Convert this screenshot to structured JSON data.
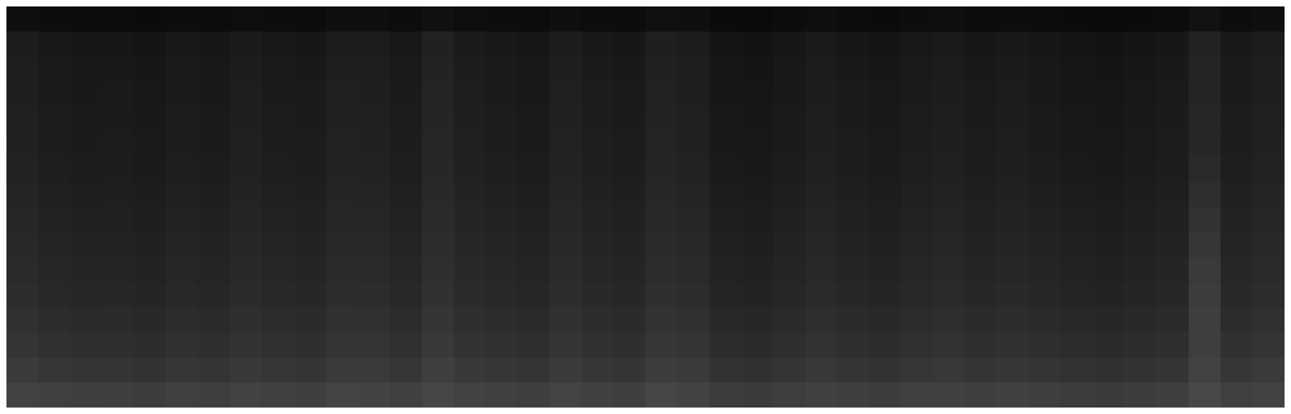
{
  "chart_data": {
    "type": "heatmap",
    "tick_labels": false,
    "cells": [
      [
        15,
        13,
        12,
        12,
        11,
        13,
        12,
        14,
        13,
        12,
        15,
        15,
        13,
        17,
        14,
        13,
        12,
        15,
        13,
        12,
        16,
        15,
        11,
        10,
        12,
        14,
        12,
        11,
        13,
        14,
        12,
        13,
        12,
        11,
        10,
        11,
        12,
        18,
        13,
        15
      ],
      [
        28,
        24,
        22,
        23,
        21,
        24,
        22,
        27,
        24,
        23,
        29,
        28,
        24,
        33,
        27,
        24,
        22,
        29,
        25,
        23,
        31,
        28,
        20,
        19,
        22,
        26,
        23,
        21,
        24,
        26,
        23,
        25,
        22,
        20,
        19,
        21,
        23,
        34,
        24,
        28
      ],
      [
        30,
        26,
        24,
        25,
        23,
        26,
        24,
        29,
        26,
        25,
        31,
        30,
        26,
        35,
        29,
        26,
        24,
        31,
        27,
        25,
        33,
        30,
        22,
        21,
        24,
        28,
        25,
        23,
        26,
        28,
        25,
        27,
        24,
        22,
        21,
        23,
        25,
        36,
        26,
        30
      ],
      [
        31,
        27,
        25,
        26,
        24,
        27,
        25,
        30,
        27,
        26,
        32,
        31,
        27,
        36,
        30,
        27,
        25,
        32,
        28,
        26,
        34,
        31,
        23,
        22,
        25,
        29,
        26,
        24,
        27,
        29,
        26,
        28,
        25,
        23,
        22,
        24,
        26,
        37,
        27,
        31
      ],
      [
        32,
        28,
        26,
        27,
        25,
        28,
        26,
        31,
        28,
        27,
        33,
        32,
        28,
        37,
        31,
        28,
        26,
        33,
        29,
        27,
        35,
        32,
        24,
        23,
        26,
        30,
        27,
        25,
        28,
        30,
        27,
        29,
        26,
        24,
        23,
        25,
        27,
        38,
        28,
        32
      ],
      [
        33,
        29,
        27,
        28,
        26,
        29,
        27,
        32,
        29,
        28,
        34,
        33,
        29,
        38,
        32,
        29,
        27,
        34,
        30,
        28,
        36,
        33,
        25,
        24,
        27,
        31,
        28,
        26,
        29,
        31,
        28,
        30,
        27,
        25,
        24,
        26,
        28,
        39,
        29,
        33
      ],
      [
        34,
        30,
        28,
        29,
        27,
        30,
        28,
        33,
        30,
        29,
        35,
        34,
        30,
        39,
        33,
        30,
        28,
        35,
        31,
        29,
        37,
        34,
        26,
        25,
        28,
        32,
        29,
        27,
        30,
        32,
        29,
        31,
        28,
        26,
        25,
        27,
        29,
        42,
        30,
        34
      ],
      [
        36,
        32,
        30,
        31,
        29,
        32,
        30,
        35,
        32,
        31,
        37,
        36,
        32,
        41,
        35,
        32,
        30,
        37,
        33,
        31,
        39,
        36,
        28,
        27,
        30,
        34,
        31,
        29,
        32,
        34,
        31,
        33,
        30,
        28,
        27,
        29,
        31,
        46,
        32,
        36
      ],
      [
        38,
        34,
        32,
        33,
        31,
        34,
        32,
        37,
        34,
        33,
        39,
        38,
        34,
        43,
        37,
        34,
        32,
        39,
        35,
        33,
        41,
        38,
        30,
        29,
        32,
        36,
        33,
        31,
        34,
        36,
        33,
        35,
        32,
        30,
        29,
        31,
        33,
        50,
        34,
        38
      ],
      [
        40,
        36,
        34,
        35,
        33,
        36,
        34,
        39,
        36,
        35,
        41,
        40,
        36,
        45,
        39,
        36,
        34,
        41,
        37,
        35,
        43,
        40,
        32,
        31,
        34,
        38,
        35,
        33,
        36,
        38,
        35,
        37,
        34,
        32,
        31,
        33,
        35,
        54,
        36,
        40
      ],
      [
        42,
        38,
        36,
        37,
        35,
        38,
        36,
        41,
        38,
        37,
        43,
        42,
        38,
        47,
        41,
        38,
        36,
        43,
        39,
        37,
        45,
        42,
        34,
        33,
        36,
        40,
        37,
        35,
        38,
        40,
        37,
        39,
        36,
        34,
        33,
        35,
        37,
        58,
        38,
        42
      ],
      [
        44,
        40,
        38,
        39,
        37,
        40,
        38,
        43,
        40,
        39,
        45,
        44,
        40,
        49,
        43,
        40,
        38,
        45,
        41,
        39,
        47,
        44,
        36,
        35,
        38,
        42,
        39,
        37,
        40,
        42,
        39,
        41,
        38,
        36,
        35,
        37,
        39,
        60,
        40,
        44
      ],
      [
        48,
        44,
        42,
        43,
        41,
        44,
        42,
        47,
        44,
        43,
        49,
        48,
        44,
        53,
        47,
        44,
        42,
        49,
        45,
        43,
        51,
        48,
        40,
        39,
        42,
        46,
        43,
        41,
        44,
        46,
        43,
        45,
        42,
        40,
        39,
        41,
        43,
        62,
        44,
        48
      ],
      [
        52,
        48,
        46,
        47,
        45,
        48,
        46,
        51,
        48,
        47,
        53,
        52,
        48,
        57,
        51,
        48,
        46,
        53,
        49,
        47,
        55,
        52,
        44,
        43,
        46,
        50,
        47,
        45,
        48,
        50,
        47,
        49,
        46,
        44,
        43,
        45,
        47,
        62,
        48,
        52
      ],
      [
        58,
        54,
        52,
        53,
        51,
        54,
        52,
        57,
        54,
        53,
        59,
        58,
        54,
        63,
        57,
        54,
        52,
        59,
        55,
        53,
        61,
        58,
        50,
        49,
        52,
        56,
        53,
        51,
        54,
        56,
        53,
        55,
        52,
        50,
        49,
        51,
        53,
        66,
        54,
        58
      ],
      [
        66,
        64,
        62,
        63,
        61,
        64,
        62,
        66,
        64,
        63,
        68,
        67,
        64,
        70,
        66,
        64,
        62,
        68,
        65,
        63,
        70,
        67,
        60,
        59,
        62,
        65,
        63,
        61,
        64,
        65,
        63,
        65,
        62,
        60,
        59,
        61,
        63,
        72,
        64,
        66
      ]
    ]
  }
}
